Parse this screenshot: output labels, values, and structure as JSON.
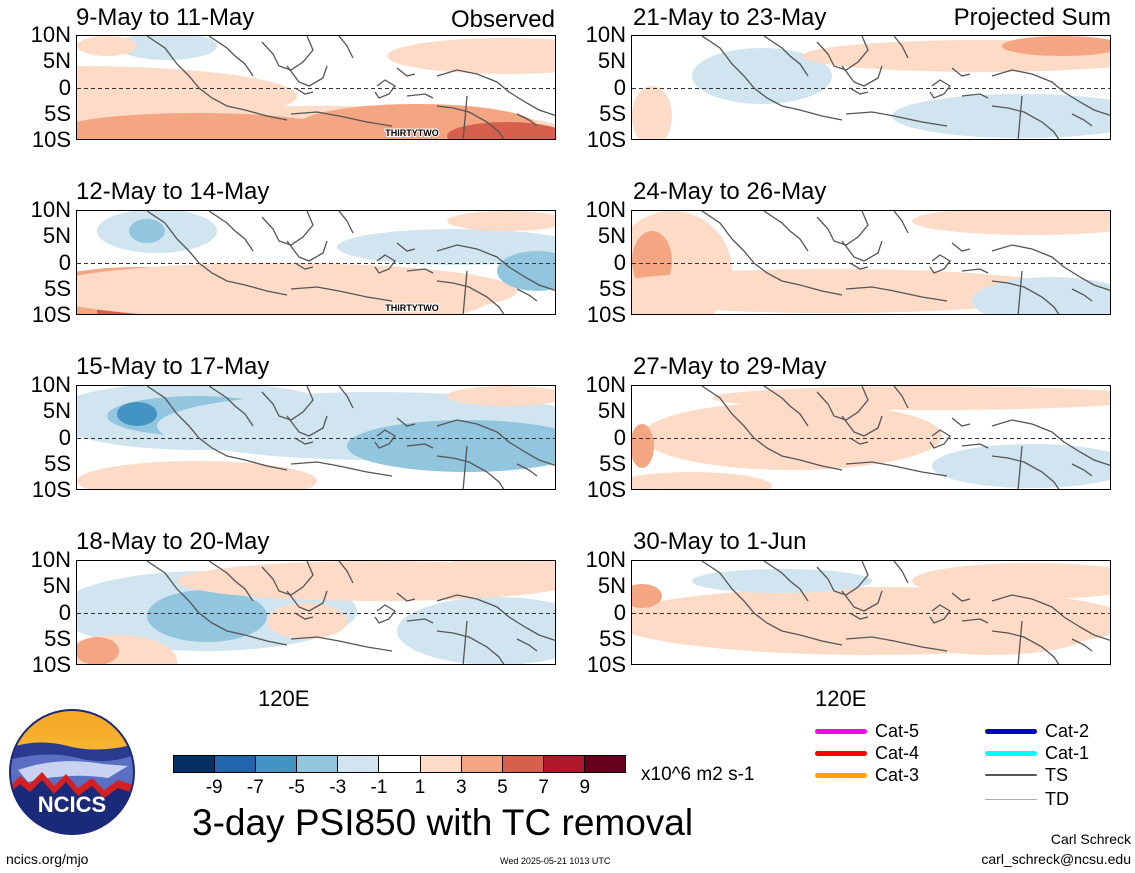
{
  "panels": [
    {
      "title": "9-May to 11-May",
      "tag": "Observed",
      "annotation": "THIRTYTWO"
    },
    {
      "title": "12-May to 14-May",
      "tag": "",
      "annotation": "THIRTYTWO"
    },
    {
      "title": "15-May to 17-May",
      "tag": "",
      "annotation": ""
    },
    {
      "title": "18-May to 20-May",
      "tag": "",
      "annotation": ""
    },
    {
      "title": "21-May to 23-May",
      "tag": "Projected Sum",
      "annotation": ""
    },
    {
      "title": "24-May to 26-May",
      "tag": "",
      "annotation": ""
    },
    {
      "title": "27-May to 29-May",
      "tag": "",
      "annotation": ""
    },
    {
      "title": "30-May to 1-Jun",
      "tag": "",
      "annotation": ""
    }
  ],
  "lat_labels": [
    "10N",
    "5N",
    "0",
    "5S",
    "10S"
  ],
  "lon_label": "120E",
  "colorbar": {
    "colors": [
      "#053061",
      "#2166ac",
      "#4393c3",
      "#92c5de",
      "#d1e5f0",
      "#ffffff",
      "#fddbc7",
      "#f4a582",
      "#d6604d",
      "#b2182b",
      "#67001f"
    ],
    "labels": [
      "-9",
      "-7",
      "-5",
      "-3",
      "-1",
      "1",
      "3",
      "5",
      "7",
      "9"
    ],
    "unit": "x10^6 m2 s-1"
  },
  "title": "3-day PSI850 with TC removal",
  "legend": [
    {
      "label": "Cat-5",
      "color": "#ff00ff"
    },
    {
      "label": "Cat-4",
      "color": "#ff0000"
    },
    {
      "label": "Cat-3",
      "color": "#ffa500"
    },
    {
      "label": "Cat-2",
      "color": "#0000cd"
    },
    {
      "label": "Cat-1",
      "color": "#00ffff"
    },
    {
      "label": "TS",
      "color": "#555555"
    },
    {
      "label": "TD",
      "color": "#aaaaaa"
    }
  ],
  "credits": {
    "website": "ncics.org/mjo",
    "timestamp": "Wed 2025-05-21 1013 UTC",
    "author": "Carl Schreck",
    "email": "carl_schreck@ncsu.edu",
    "logo_text": "NCICS"
  }
}
